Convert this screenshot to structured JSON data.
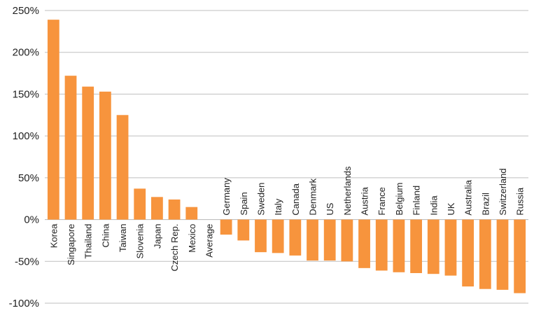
{
  "chart_data": {
    "type": "bar",
    "title": "",
    "xlabel": "",
    "ylabel": "",
    "ylim": [
      -100,
      250
    ],
    "yticks": [
      "-100%",
      "-50%",
      "0%",
      "50%",
      "100%",
      "150%",
      "200%",
      "250%"
    ],
    "ytick_values": [
      -100,
      -50,
      0,
      50,
      100,
      150,
      200,
      250
    ],
    "grid": true,
    "bar_color": "#F7943D",
    "grid_color": "#BFBFBF",
    "categories": [
      "Korea",
      "Singapore",
      "Thailand",
      "China",
      "Taiwan",
      "Slovenia",
      "Japan",
      "Czech Rep.",
      "Mexico",
      "Average",
      "Germany",
      "Spain",
      "Sweden",
      "Italy",
      "Canada",
      "Denmark",
      "US",
      "Netherlands",
      "Austria",
      "France",
      "Belgium",
      "Finland",
      "India",
      "UK",
      "Australia",
      "Brazil",
      "Switzerland",
      "Russia"
    ],
    "values": [
      239,
      172,
      159,
      153,
      125,
      37,
      27,
      24,
      15,
      0,
      -18,
      -25,
      -39,
      -40,
      -43,
      -49,
      -49,
      -50,
      -58,
      -61,
      -63,
      -64,
      -65,
      -67,
      -80,
      -83,
      -84,
      -88
    ]
  }
}
